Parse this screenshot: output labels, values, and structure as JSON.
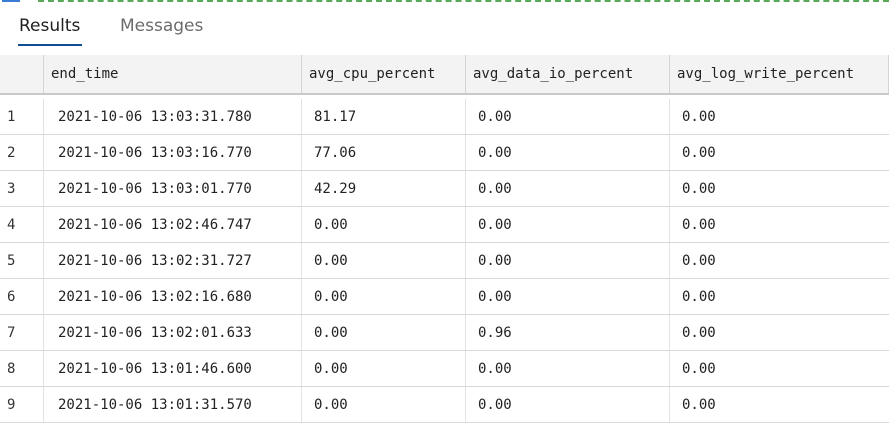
{
  "tabs": [
    {
      "label": "Results",
      "active": true
    },
    {
      "label": "Messages",
      "active": false
    }
  ],
  "columns": [
    "",
    "end_time",
    "avg_cpu_percent",
    "avg_data_io_percent",
    "avg_log_write_percent"
  ],
  "rows": [
    [
      "1",
      "2021-10-06 13:03:31.780",
      "81.17",
      "0.00",
      "0.00"
    ],
    [
      "2",
      "2021-10-06 13:03:16.770",
      "77.06",
      "0.00",
      "0.00"
    ],
    [
      "3",
      "2021-10-06 13:03:01.770",
      "42.29",
      "0.00",
      "0.00"
    ],
    [
      "4",
      "2021-10-06 13:02:46.747",
      "0.00",
      "0.00",
      "0.00"
    ],
    [
      "5",
      "2021-10-06 13:02:31.727",
      "0.00",
      "0.00",
      "0.00"
    ],
    [
      "6",
      "2021-10-06 13:02:16.680",
      "0.00",
      "0.00",
      "0.00"
    ],
    [
      "7",
      "2021-10-06 13:02:01.633",
      "0.00",
      "0.96",
      "0.00"
    ],
    [
      "8",
      "2021-10-06 13:01:46.600",
      "0.00",
      "0.00",
      "0.00"
    ],
    [
      "9",
      "2021-10-06 13:01:31.570",
      "0.00",
      "0.00",
      "0.00"
    ]
  ],
  "colors": {
    "active_tab_underline": "#0e4e96",
    "header_bg": "#f3f3f3"
  }
}
